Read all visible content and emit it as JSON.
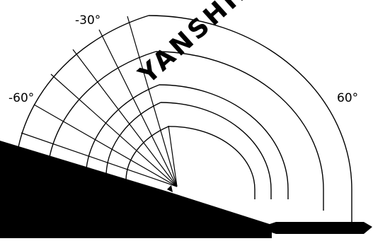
{
  "labels": {
    "angle_minus_30": "-30°",
    "angle_minus_60": "-60°",
    "angle_plus_60": "60°"
  },
  "watermark": {
    "text": "YANSHINE"
  },
  "colors": {
    "line": "#000000",
    "fill": "#000000",
    "watermark": "#e3e3e3",
    "background": "#ffffff"
  }
}
